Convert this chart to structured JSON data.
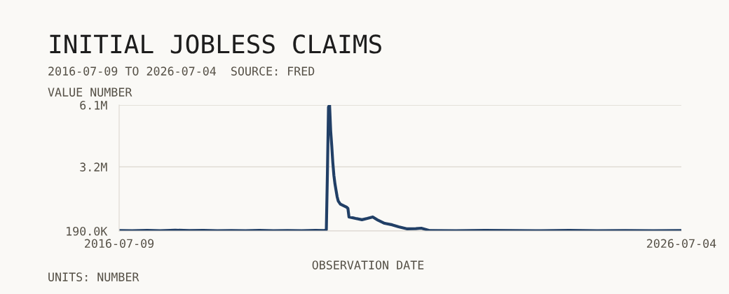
{
  "chart_data": {
    "type": "line",
    "title": "INITIAL JOBLESS CLAIMS",
    "subtitle": "2016-07-09 TO 2026-07-04  SOURCE: FRED",
    "ylabel": "VALUE NUMBER",
    "xlabel": "OBSERVATION DATE",
    "annotations": [
      "UNITS: NUMBER"
    ],
    "xlim": [
      "2016-07-09",
      "2026-07-04"
    ],
    "xticks": [
      "2016-07-09",
      "2026-07-04"
    ],
    "ylim": [
      190000,
      6100000
    ],
    "yticks": [
      {
        "value": 190000,
        "label": "190.0K"
      },
      {
        "value": 3200000,
        "label": "3.2M"
      },
      {
        "value": 6100000,
        "label": "6.1M"
      }
    ],
    "grid": "y",
    "legend": false,
    "marker": "none",
    "line_style": "solid",
    "series": [
      {
        "color": "#213f66",
        "x": [
          "2016-07-09",
          "2016-10-01",
          "2017-01-07",
          "2017-04-01",
          "2017-07-08",
          "2017-10-07",
          "2018-01-06",
          "2018-04-07",
          "2018-07-07",
          "2018-10-06",
          "2019-01-05",
          "2019-04-06",
          "2019-07-06",
          "2019-10-05",
          "2020-01-04",
          "2020-02-29",
          "2020-03-14",
          "2020-03-21",
          "2020-03-28",
          "2020-04-04",
          "2020-04-11",
          "2020-04-18",
          "2020-04-25",
          "2020-05-02",
          "2020-05-09",
          "2020-05-16",
          "2020-05-23",
          "2020-05-30",
          "2020-06-13",
          "2020-06-27",
          "2020-07-11",
          "2020-07-25",
          "2020-08-01",
          "2020-08-08",
          "2020-09-19",
          "2020-10-31",
          "2020-12-05",
          "2021-01-09",
          "2021-02-06",
          "2021-03-27",
          "2021-05-15",
          "2021-06-26",
          "2021-08-21",
          "2021-10-16",
          "2021-11-20",
          "2022-01-15",
          "2022-07-02",
          "2023-01-07",
          "2023-07-01",
          "2024-01-06",
          "2024-07-06",
          "2025-01-04",
          "2025-07-05",
          "2026-01-03",
          "2026-07-04"
        ],
        "values": [
          210000,
          200000,
          220000,
          200000,
          230000,
          210000,
          220000,
          200000,
          210000,
          200000,
          220000,
          200000,
          210000,
          200000,
          220000,
          210000,
          250000,
          2900000,
          6000000,
          6100000,
          4900000,
          4200000,
          3400000,
          2800000,
          2400000,
          2100000,
          1800000,
          1600000,
          1450000,
          1400000,
          1350000,
          1300000,
          1250000,
          850000,
          780000,
          720000,
          780000,
          850000,
          720000,
          550000,
          480000,
          390000,
          290000,
          300000,
          320000,
          210000,
          200000,
          220000,
          210000,
          200000,
          220000,
          200000,
          210000,
          200000,
          210000
        ]
      }
    ]
  }
}
